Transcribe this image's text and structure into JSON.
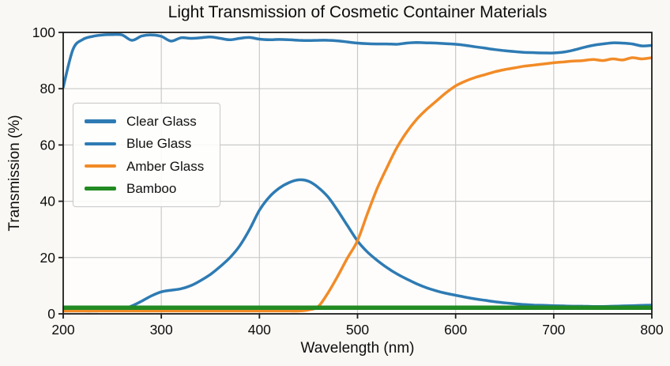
{
  "figure": {
    "background": "#faf8f4",
    "plot_background": "#fefdfb",
    "grid_color": "#c9c9c9",
    "spine_color": "#1f1f1f",
    "text_color": "#111111"
  },
  "chart_data": {
    "type": "line",
    "title": "Light Transmission of Cosmetic Container Materials",
    "xlabel": "Wavelength (nm)",
    "ylabel": "Transmission (%)",
    "xlim": [
      200,
      800
    ],
    "ylim": [
      0,
      100
    ],
    "xticks": [
      200,
      300,
      400,
      500,
      600,
      700,
      800
    ],
    "yticks": [
      0,
      20,
      40,
      60,
      80,
      100
    ],
    "grid": true,
    "legend_position": "upper-left",
    "x": [
      200,
      210,
      220,
      230,
      240,
      250,
      260,
      270,
      280,
      290,
      300,
      310,
      320,
      330,
      340,
      350,
      360,
      370,
      380,
      390,
      400,
      410,
      420,
      430,
      440,
      450,
      460,
      470,
      480,
      490,
      500,
      510,
      520,
      530,
      540,
      550,
      560,
      570,
      580,
      590,
      600,
      610,
      620,
      630,
      640,
      650,
      660,
      670,
      680,
      690,
      700,
      710,
      720,
      730,
      740,
      750,
      760,
      770,
      780,
      790,
      800
    ],
    "series": [
      {
        "name": "Clear Glass",
        "color": "#2e7bb4",
        "line_width": 3.5,
        "values": [
          80.5,
          94,
          97.5,
          98.6,
          99.1,
          99.2,
          99.1,
          97.2,
          98.7,
          99.1,
          98.6,
          96.9,
          98.1,
          97.9,
          98.1,
          98.4,
          97.9,
          97.4,
          97.9,
          98.2,
          97.6,
          97.4,
          97.5,
          97.4,
          97.2,
          97.1,
          97.2,
          97.2,
          97,
          96.6,
          96.2,
          96,
          95.9,
          95.9,
          95.8,
          96.2,
          96.4,
          96.3,
          96.2,
          96,
          95.8,
          95.4,
          94.9,
          94.4,
          93.9,
          93.5,
          93.2,
          92.9,
          92.8,
          92.7,
          92.7,
          93,
          93.7,
          94.6,
          95.4,
          95.9,
          96.3,
          96.2,
          95.9,
          95.2,
          95.4
        ]
      },
      {
        "name": "Blue Glass",
        "color": "#2e7bb4",
        "line_width": 3.5,
        "values": [
          1,
          1,
          1,
          1,
          1.1,
          1.2,
          1.6,
          2.8,
          4.5,
          6.4,
          7.8,
          8.4,
          8.9,
          10,
          11.8,
          14,
          16.8,
          20,
          24.2,
          30,
          36.8,
          41.5,
          44.6,
          46.6,
          47.6,
          47.1,
          44.9,
          41.5,
          36.6,
          31.2,
          25.9,
          22,
          19,
          16.4,
          14.2,
          12.4,
          10.7,
          9.3,
          8.2,
          7.3,
          6.6,
          5.9,
          5.3,
          4.8,
          4.3,
          3.9,
          3.6,
          3.3,
          3.1,
          3,
          2.9,
          2.8,
          2.7,
          2.7,
          2.6,
          2.6,
          2.7,
          2.8,
          2.9,
          3,
          3.1
        ]
      },
      {
        "name": "Amber Glass",
        "color": "#f28b27",
        "line_width": 3.5,
        "values": [
          1,
          1,
          1,
          1,
          1,
          1,
          1,
          1,
          1,
          1,
          1,
          1,
          1,
          1,
          1,
          1,
          1,
          1,
          1,
          1,
          1,
          1,
          1,
          1,
          1,
          1.4,
          2.6,
          7.5,
          13.5,
          20,
          26,
          35.5,
          44.5,
          52,
          59,
          64.5,
          69,
          72.5,
          75.5,
          78.5,
          81,
          82.7,
          84,
          85,
          86,
          86.8,
          87.4,
          88,
          88.4,
          88.8,
          89.2,
          89.5,
          89.8,
          90,
          90.4,
          90,
          90.6,
          90.2,
          91,
          90.6,
          91
        ]
      },
      {
        "name": "Bamboo",
        "color": "#228b22",
        "line_width": 5.5,
        "values": [
          2.2,
          2.2,
          2.2,
          2.2,
          2.2,
          2.2,
          2.2,
          2.2,
          2.2,
          2.2,
          2.2,
          2.2,
          2.2,
          2.2,
          2.2,
          2.2,
          2.2,
          2.2,
          2.2,
          2.2,
          2.2,
          2.2,
          2.2,
          2.2,
          2.2,
          2.2,
          2.2,
          2.2,
          2.2,
          2.2,
          2.2,
          2.2,
          2.2,
          2.2,
          2.2,
          2.2,
          2.2,
          2.2,
          2.2,
          2.2,
          2.2,
          2.2,
          2.2,
          2.2,
          2.2,
          2.2,
          2.2,
          2.2,
          2.2,
          2.2,
          2.2,
          2.2,
          2.2,
          2.2,
          2.2,
          2.2,
          2.2,
          2.2,
          2.2,
          2.2,
          2.2
        ]
      }
    ]
  }
}
